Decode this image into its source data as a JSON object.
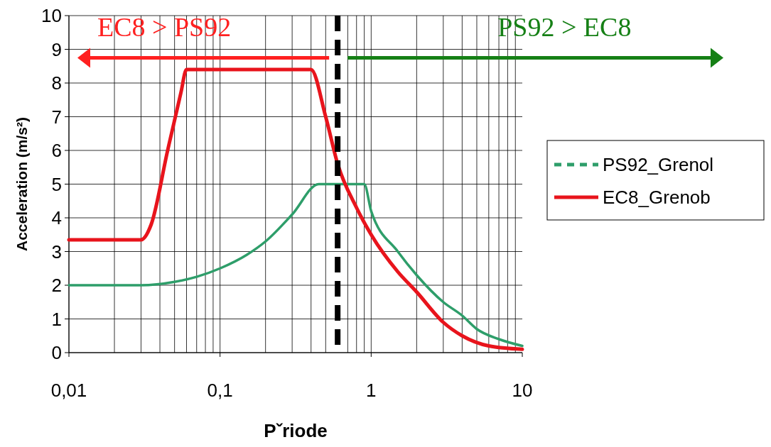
{
  "chart_data": {
    "type": "line",
    "xlabel": "Pˇriode",
    "ylabel": "Acceleration (m/s²)",
    "log": "x",
    "grid": true,
    "legend": "right",
    "xlim": [
      0.01,
      10
    ],
    "xticks": [
      {
        "value": 0.01,
        "label": "0,01"
      },
      {
        "value": 0.1,
        "label": "0,1"
      },
      1,
      10
    ],
    "ylim": [
      0,
      10
    ],
    "yticks": [
      0,
      1,
      2,
      3,
      4,
      5,
      6,
      7,
      8,
      9,
      10
    ],
    "series": [
      {
        "name": "PS92_Grenol",
        "color": "#2e9e6a",
        "x": [
          0.01,
          0.03,
          0.05,
          0.07,
          0.1,
          0.15,
          0.2,
          0.3,
          0.45,
          0.6,
          0.9,
          1,
          1.5,
          2,
          3,
          4,
          5,
          7,
          10
        ],
        "values": [
          2.0,
          2.0,
          2.1,
          2.25,
          2.5,
          2.9,
          3.3,
          4.1,
          5.0,
          5.0,
          5.0,
          4.2,
          3.0,
          2.3,
          1.5,
          1.1,
          0.7,
          0.4,
          0.2
        ]
      },
      {
        "name": "EC8_Grenob",
        "color": "#e8141c",
        "x": [
          0.01,
          0.03,
          0.035,
          0.045,
          0.055,
          0.06,
          0.4,
          0.5,
          0.6,
          0.8,
          1,
          1.5,
          2,
          3,
          4,
          6,
          10
        ],
        "values": [
          3.35,
          3.35,
          3.8,
          6.0,
          7.7,
          8.4,
          8.4,
          7.0,
          5.6,
          4.3,
          3.5,
          2.4,
          1.8,
          0.9,
          0.5,
          0.2,
          0.1
        ]
      }
    ],
    "ref_lines": [
      {
        "axis": "x",
        "value": 0.6,
        "color": "#000000",
        "line_style": "dashed"
      }
    ],
    "annotations": [
      "EC8 > PS92",
      "PS92 > EC8"
    ]
  }
}
